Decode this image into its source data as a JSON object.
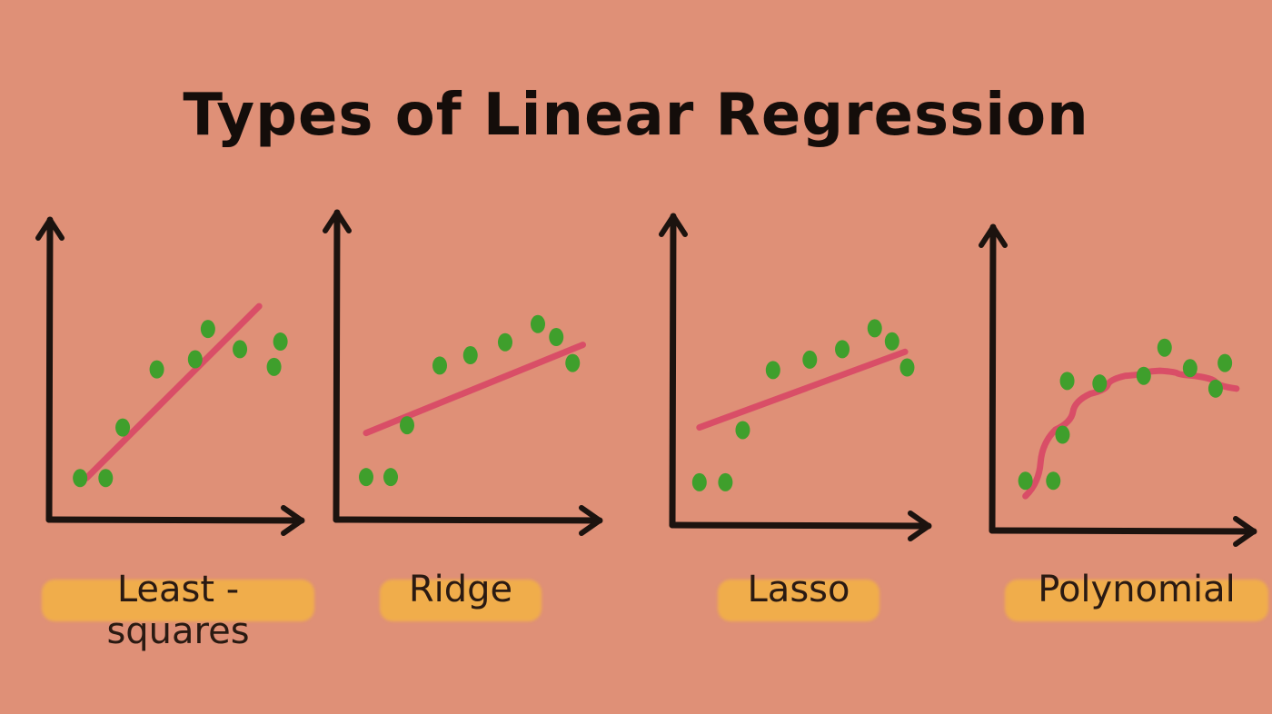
{
  "title": "Types of Linear Regression",
  "colors": {
    "background": "#df9077",
    "axis": "#1c130f",
    "points": "#3f9f2c",
    "fit": "#d84b66",
    "highlight": "#f0ad4b"
  },
  "chart_data": [
    {
      "type": "scatter",
      "label": "Least - squares",
      "points": [
        [
          1.2,
          1.5
        ],
        [
          2.4,
          1.5
        ],
        [
          3.2,
          3.5
        ],
        [
          4.8,
          5.8
        ],
        [
          6.6,
          6.2
        ],
        [
          7.2,
          7.4
        ],
        [
          8.7,
          6.6
        ],
        [
          10.6,
          6.9
        ],
        [
          10.3,
          5.9
        ]
      ],
      "fit": {
        "kind": "line",
        "x": [
          1.5,
          9.6
        ],
        "y": [
          1.5,
          8.3
        ]
      },
      "xlim": [
        0,
        11
      ],
      "ylim": [
        0,
        11
      ]
    },
    {
      "type": "scatter",
      "label": "Ridge",
      "points": [
        [
          1.2,
          1.5
        ],
        [
          2.4,
          1.5
        ],
        [
          3.2,
          3.5
        ],
        [
          4.8,
          5.8
        ],
        [
          6.3,
          6.2
        ],
        [
          8.0,
          6.7
        ],
        [
          9.6,
          7.4
        ],
        [
          10.5,
          6.9
        ],
        [
          11.3,
          5.9
        ]
      ],
      "fit": {
        "kind": "line",
        "x": [
          1.2,
          11.8
        ],
        "y": [
          3.2,
          6.6
        ]
      },
      "xlim": [
        0,
        12
      ],
      "ylim": [
        0,
        11
      ]
    },
    {
      "type": "scatter",
      "label": "Lasso",
      "points": [
        [
          1.0,
          1.5
        ],
        [
          2.2,
          1.5
        ],
        [
          3.0,
          3.5
        ],
        [
          4.4,
          5.8
        ],
        [
          6.1,
          6.2
        ],
        [
          7.6,
          6.6
        ],
        [
          9.1,
          7.4
        ],
        [
          9.9,
          6.9
        ],
        [
          10.6,
          5.9
        ]
      ],
      "fit": {
        "kind": "line",
        "x": [
          1.0,
          10.5
        ],
        "y": [
          3.6,
          6.5
        ]
      },
      "xlim": [
        0,
        11
      ],
      "ylim": [
        0,
        11
      ]
    },
    {
      "type": "scatter",
      "label": "Polynomial",
      "points": [
        [
          1.2,
          1.8
        ],
        [
          2.4,
          1.8
        ],
        [
          2.8,
          3.6
        ],
        [
          3.0,
          5.7
        ],
        [
          4.4,
          5.6
        ],
        [
          6.3,
          5.9
        ],
        [
          7.2,
          7.0
        ],
        [
          8.3,
          6.2
        ],
        [
          9.8,
          6.4
        ],
        [
          9.4,
          5.4
        ]
      ],
      "fit": {
        "kind": "curve",
        "x": [
          1.2,
          2.5,
          4.0,
          5.5,
          7.0,
          8.5,
          10.3
        ],
        "y": [
          1.2,
          3.8,
          5.2,
          5.9,
          6.1,
          5.9,
          5.4
        ]
      },
      "xlim": [
        0,
        10.5
      ],
      "ylim": [
        0,
        11
      ]
    }
  ]
}
